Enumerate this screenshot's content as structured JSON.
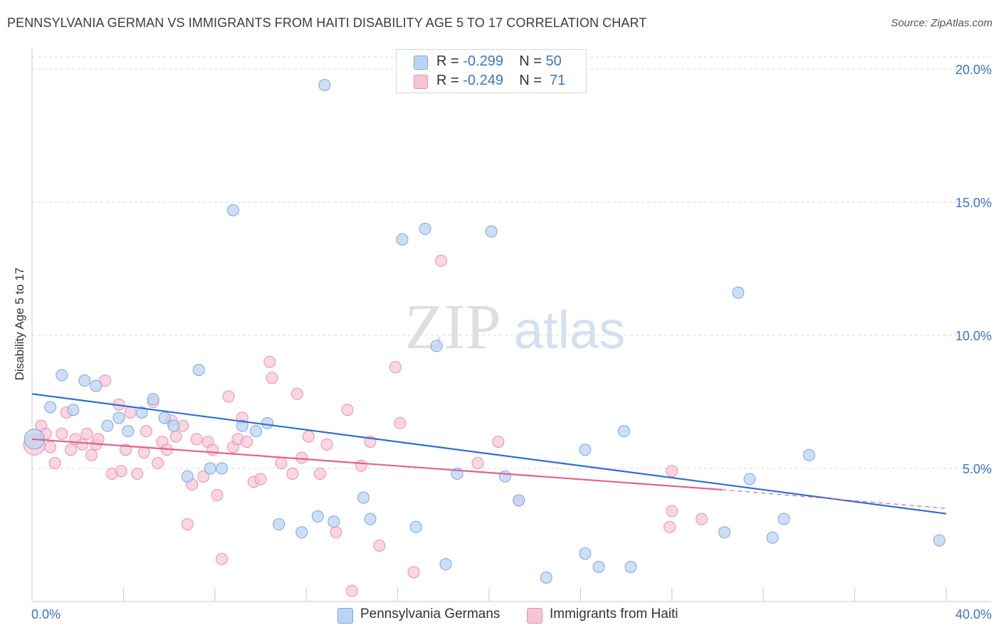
{
  "header": {
    "title": "PENNSYLVANIA GERMAN VS IMMIGRANTS FROM HAITI DISABILITY AGE 5 TO 17 CORRELATION CHART",
    "source": "Source: ZipAtlas.com"
  },
  "watermark": {
    "zip": "ZIP",
    "atlas": "atlas"
  },
  "legend_top": {
    "rows": [
      {
        "r_label": "R =",
        "r_value": "-0.299",
        "n_label": "N =",
        "n_value": "50"
      },
      {
        "r_label": "R =",
        "r_value": "-0.249",
        "n_label": "N =",
        "n_value": " 71"
      }
    ]
  },
  "legend_bottom": {
    "items": [
      {
        "label": "Pennsylvania Germans"
      },
      {
        "label": "Immigrants from Haiti"
      }
    ]
  },
  "colors": {
    "blue_fill": "#bcd4f3",
    "blue_stroke": "#7aa6de",
    "blue_line": "#2c6fd4",
    "pink_fill": "#f6c5d4",
    "pink_stroke": "#ea8fac",
    "pink_line": "#e0628f",
    "grid": "#d9d9d9",
    "tick_label": "#3b73c9"
  },
  "chart_data": {
    "type": "scatter",
    "title": "PENNSYLVANIA GERMAN VS IMMIGRANTS FROM HAITI DISABILITY AGE 5 TO 17 CORRELATION CHART",
    "xlabel": "",
    "ylabel": "Disability Age 5 to 17",
    "xlim": [
      0,
      40
    ],
    "ylim": [
      0,
      20.5
    ],
    "x_tick_labels": [
      "0.0%",
      "40.0%"
    ],
    "y_ticks": [
      5,
      10,
      15,
      20
    ],
    "y_tick_labels": [
      "5.0%",
      "10.0%",
      "15.0%",
      "20.0%"
    ],
    "grid": true,
    "series": [
      {
        "name": "Pennsylvania Germans",
        "r": -0.299,
        "n": 50,
        "trend": {
          "x0": 0,
          "y0": 7.8,
          "x1": 40,
          "y1": 3.3
        },
        "points": [
          [
            0.1,
            6.1
          ],
          [
            0.8,
            7.3
          ],
          [
            1.3,
            8.5
          ],
          [
            1.8,
            7.2
          ],
          [
            2.3,
            8.3
          ],
          [
            2.8,
            8.1
          ],
          [
            3.3,
            6.6
          ],
          [
            3.8,
            6.9
          ],
          [
            4.2,
            6.4
          ],
          [
            4.8,
            7.1
          ],
          [
            5.3,
            7.6
          ],
          [
            5.8,
            6.9
          ],
          [
            6.2,
            6.6
          ],
          [
            6.8,
            4.7
          ],
          [
            7.3,
            8.7
          ],
          [
            7.8,
            5.0
          ],
          [
            8.3,
            5.0
          ],
          [
            8.8,
            14.7
          ],
          [
            9.2,
            6.6
          ],
          [
            9.8,
            6.4
          ],
          [
            10.3,
            6.7
          ],
          [
            10.8,
            2.9
          ],
          [
            11.8,
            2.6
          ],
          [
            12.5,
            3.2
          ],
          [
            12.8,
            19.4
          ],
          [
            13.2,
            3.0
          ],
          [
            14.5,
            3.9
          ],
          [
            14.8,
            3.1
          ],
          [
            16.2,
            13.6
          ],
          [
            16.8,
            2.8
          ],
          [
            17.2,
            14.0
          ],
          [
            17.7,
            9.6
          ],
          [
            18.1,
            1.4
          ],
          [
            18.6,
            4.8
          ],
          [
            20.1,
            13.9
          ],
          [
            20.7,
            4.7
          ],
          [
            21.3,
            3.8
          ],
          [
            22.5,
            0.9
          ],
          [
            24.2,
            1.8
          ],
          [
            24.2,
            5.7
          ],
          [
            24.8,
            1.3
          ],
          [
            25.9,
            6.4
          ],
          [
            26.2,
            1.3
          ],
          [
            30.9,
            11.6
          ],
          [
            30.3,
            2.6
          ],
          [
            31.4,
            4.6
          ],
          [
            32.4,
            2.4
          ],
          [
            32.9,
            3.1
          ],
          [
            34.0,
            5.5
          ],
          [
            39.7,
            2.3
          ]
        ]
      },
      {
        "name": "Immigrants from Haiti",
        "r": -0.249,
        "n": 71,
        "trend": {
          "x0": 0,
          "y0": 6.1,
          "x1": 30.2,
          "y1": 4.2,
          "dash_x1": 40,
          "dash_y1": 3.5
        },
        "points": [
          [
            0.1,
            5.9
          ],
          [
            0.4,
            6.6
          ],
          [
            0.6,
            6.3
          ],
          [
            0.8,
            5.8
          ],
          [
            1.0,
            5.2
          ],
          [
            1.3,
            6.3
          ],
          [
            1.5,
            7.1
          ],
          [
            1.7,
            5.7
          ],
          [
            1.9,
            6.1
          ],
          [
            2.2,
            5.9
          ],
          [
            2.4,
            6.3
          ],
          [
            2.6,
            5.5
          ],
          [
            2.8,
            5.9
          ],
          [
            2.9,
            6.1
          ],
          [
            3.2,
            8.3
          ],
          [
            3.5,
            4.8
          ],
          [
            3.8,
            7.4
          ],
          [
            3.9,
            4.9
          ],
          [
            4.1,
            5.7
          ],
          [
            4.3,
            7.1
          ],
          [
            4.6,
            4.8
          ],
          [
            4.9,
            5.6
          ],
          [
            5.0,
            6.4
          ],
          [
            5.3,
            7.5
          ],
          [
            5.5,
            5.2
          ],
          [
            5.7,
            6.0
          ],
          [
            5.9,
            5.7
          ],
          [
            6.1,
            6.8
          ],
          [
            6.3,
            6.2
          ],
          [
            6.6,
            6.6
          ],
          [
            6.8,
            2.9
          ],
          [
            7.0,
            4.4
          ],
          [
            7.2,
            6.1
          ],
          [
            7.5,
            4.7
          ],
          [
            7.7,
            6.0
          ],
          [
            7.9,
            5.7
          ],
          [
            8.1,
            4.0
          ],
          [
            8.3,
            1.6
          ],
          [
            8.6,
            7.7
          ],
          [
            8.8,
            5.8
          ],
          [
            9.0,
            6.1
          ],
          [
            9.2,
            6.9
          ],
          [
            9.4,
            6.0
          ],
          [
            9.7,
            4.5
          ],
          [
            10.0,
            4.6
          ],
          [
            10.4,
            9.0
          ],
          [
            10.5,
            8.4
          ],
          [
            10.9,
            5.2
          ],
          [
            11.4,
            4.8
          ],
          [
            11.6,
            7.8
          ],
          [
            11.8,
            5.4
          ],
          [
            12.1,
            6.2
          ],
          [
            12.6,
            4.8
          ],
          [
            12.9,
            5.9
          ],
          [
            13.3,
            2.6
          ],
          [
            13.8,
            7.2
          ],
          [
            14.0,
            0.4
          ],
          [
            14.4,
            5.1
          ],
          [
            14.8,
            6.0
          ],
          [
            15.2,
            2.1
          ],
          [
            15.9,
            8.8
          ],
          [
            16.1,
            6.7
          ],
          [
            16.7,
            1.1
          ],
          [
            17.9,
            12.8
          ],
          [
            19.5,
            5.2
          ],
          [
            20.4,
            6.0
          ],
          [
            21.3,
            3.8
          ],
          [
            27.9,
            2.8
          ],
          [
            28.0,
            3.4
          ],
          [
            28.0,
            4.9
          ],
          [
            29.3,
            3.1
          ]
        ]
      }
    ]
  }
}
